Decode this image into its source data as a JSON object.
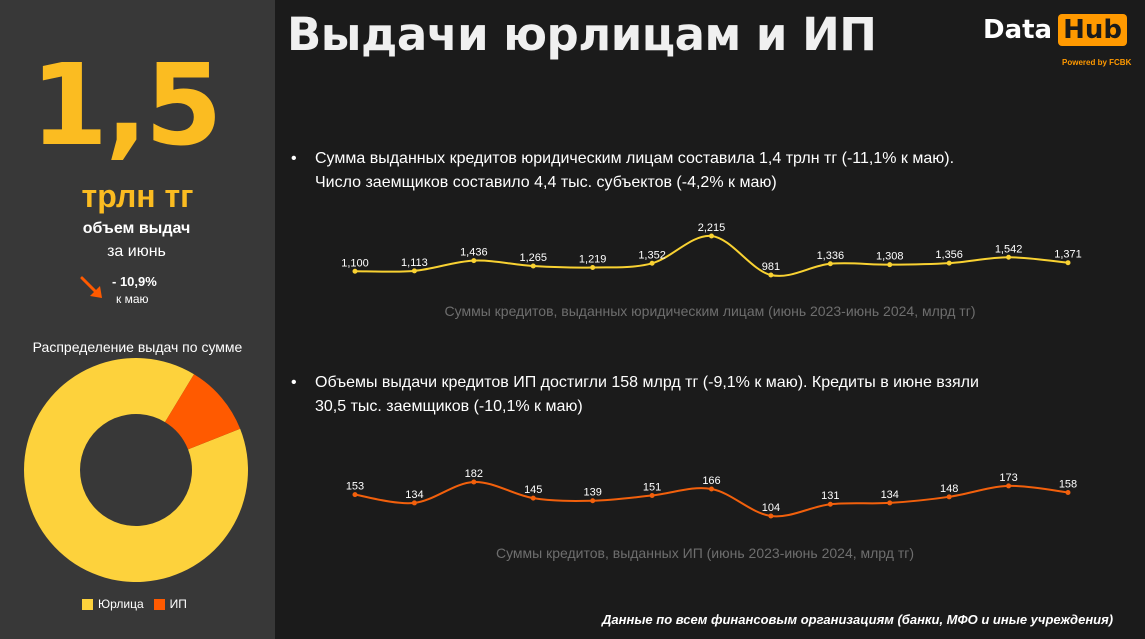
{
  "header": {
    "title": "Выдачи юрлицам и ИП",
    "logo_data": "Data",
    "logo_hub": "Hub",
    "logo_sub": "Powered by FCBK"
  },
  "sidebar": {
    "big_value": "1,5",
    "big_unit": "трлн тг",
    "label_bold": "объем выдач",
    "label_period": "за июнь",
    "change_value": "- 10,9%",
    "change_note": "к маю",
    "distribution_title": "Распределение выдач по сумме",
    "legend": [
      {
        "label": "Юрлица",
        "color": "#fdd23c"
      },
      {
        "label": "ИП",
        "color": "#ff5a00"
      }
    ]
  },
  "bullets": {
    "legal": {
      "dot": "•",
      "line1": "Сумма выданных кредитов юридическим лицам составила 1,4 трлн тг (-11,1% к маю).",
      "line2": "Число заемщиков составило 4,4 тыс. субъектов (-4,2% к маю)"
    },
    "ip": {
      "dot": "•",
      "line1": "Объемы выдачи кредитов ИП достигли 158 млрд тг (-9,1% к маю). Кредиты в июне взяли",
      "line2": "30,5 тыс. заемщиков (-10,1% к маю)"
    }
  },
  "footer": "Данные по всем финансовым организациям (банки, МФО и иные учреждения)",
  "chart_data": [
    {
      "type": "pie",
      "categories": [
        "Юрлица",
        "ИП"
      ],
      "values": [
        1371,
        158
      ],
      "colors": [
        "#fdd23c",
        "#ff5a00"
      ],
      "donut": true,
      "title": "Распределение выдач по сумме"
    },
    {
      "type": "line",
      "caption": "Суммы кредитов, выданных юридическим лицам (июнь 2023-июнь 2024, млрд тг)",
      "color": "#f9d232",
      "values": [
        1100,
        1113,
        1436,
        1265,
        1219,
        1352,
        2215,
        981,
        1336,
        1308,
        1356,
        1542,
        1371
      ],
      "labels": [
        "1,100",
        "1,113",
        "1,436",
        "1,265",
        "1,219",
        "1,352",
        "2,215",
        "981",
        "1,336",
        "1,308",
        "1,356",
        "1,542",
        "1,371"
      ]
    },
    {
      "type": "line",
      "caption": "Суммы кредитов, выданных ИП  (июнь 2023-июнь 2024, млрд тг)",
      "color": "#f2600c",
      "values": [
        153,
        134,
        182,
        145,
        139,
        151,
        166,
        104,
        131,
        134,
        148,
        173,
        158
      ],
      "labels": [
        "153",
        "134",
        "182",
        "145",
        "139",
        "151",
        "166",
        "104",
        "131",
        "134",
        "148",
        "173",
        "158"
      ]
    }
  ]
}
